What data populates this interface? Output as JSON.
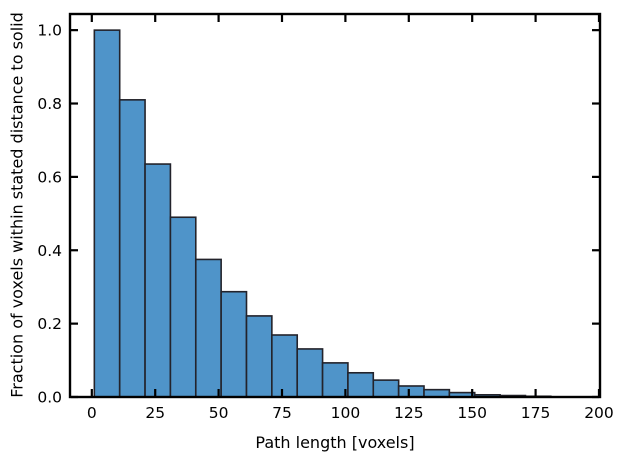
{
  "figure": {
    "background": "#ffffff",
    "text_color": "#000000"
  },
  "chart_data": {
    "type": "bar",
    "subtype": "histogram",
    "title": "",
    "xlabel": "Path length [voxels]",
    "ylabel": "Fraction of voxels within stated distance to solid",
    "bin_start": 1,
    "bin_width": 10,
    "bin_edges": [
      1,
      11,
      21,
      31,
      41,
      51,
      61,
      71,
      81,
      91,
      101,
      111,
      121,
      131,
      141,
      151,
      161,
      171,
      181
    ],
    "values": [
      1.0,
      0.81,
      0.635,
      0.49,
      0.375,
      0.287,
      0.221,
      0.169,
      0.131,
      0.093,
      0.066,
      0.046,
      0.03,
      0.02,
      0.012,
      0.006,
      0.004,
      0.002
    ],
    "x_ticks": [
      0,
      25,
      50,
      75,
      100,
      125,
      150,
      175,
      200
    ],
    "x_tick_labels": [
      "0",
      "25",
      "50",
      "75",
      "100",
      "125",
      "150",
      "175",
      "200"
    ],
    "y_ticks": [
      0.0,
      0.2,
      0.4,
      0.6,
      0.8,
      1.0
    ],
    "y_tick_labels": [
      "0.0",
      "0.2",
      "0.4",
      "0.6",
      "0.8",
      "1.0"
    ],
    "xlim": [
      -8.6,
      200.4
    ],
    "ylim": [
      0,
      1.044
    ],
    "grid": false,
    "legend": null,
    "bar_color": "#4f94c9",
    "bar_edge_color": "#23232b",
    "axis_color": "#000000",
    "tick_direction": "in",
    "ticks_on_all_sides": true
  }
}
